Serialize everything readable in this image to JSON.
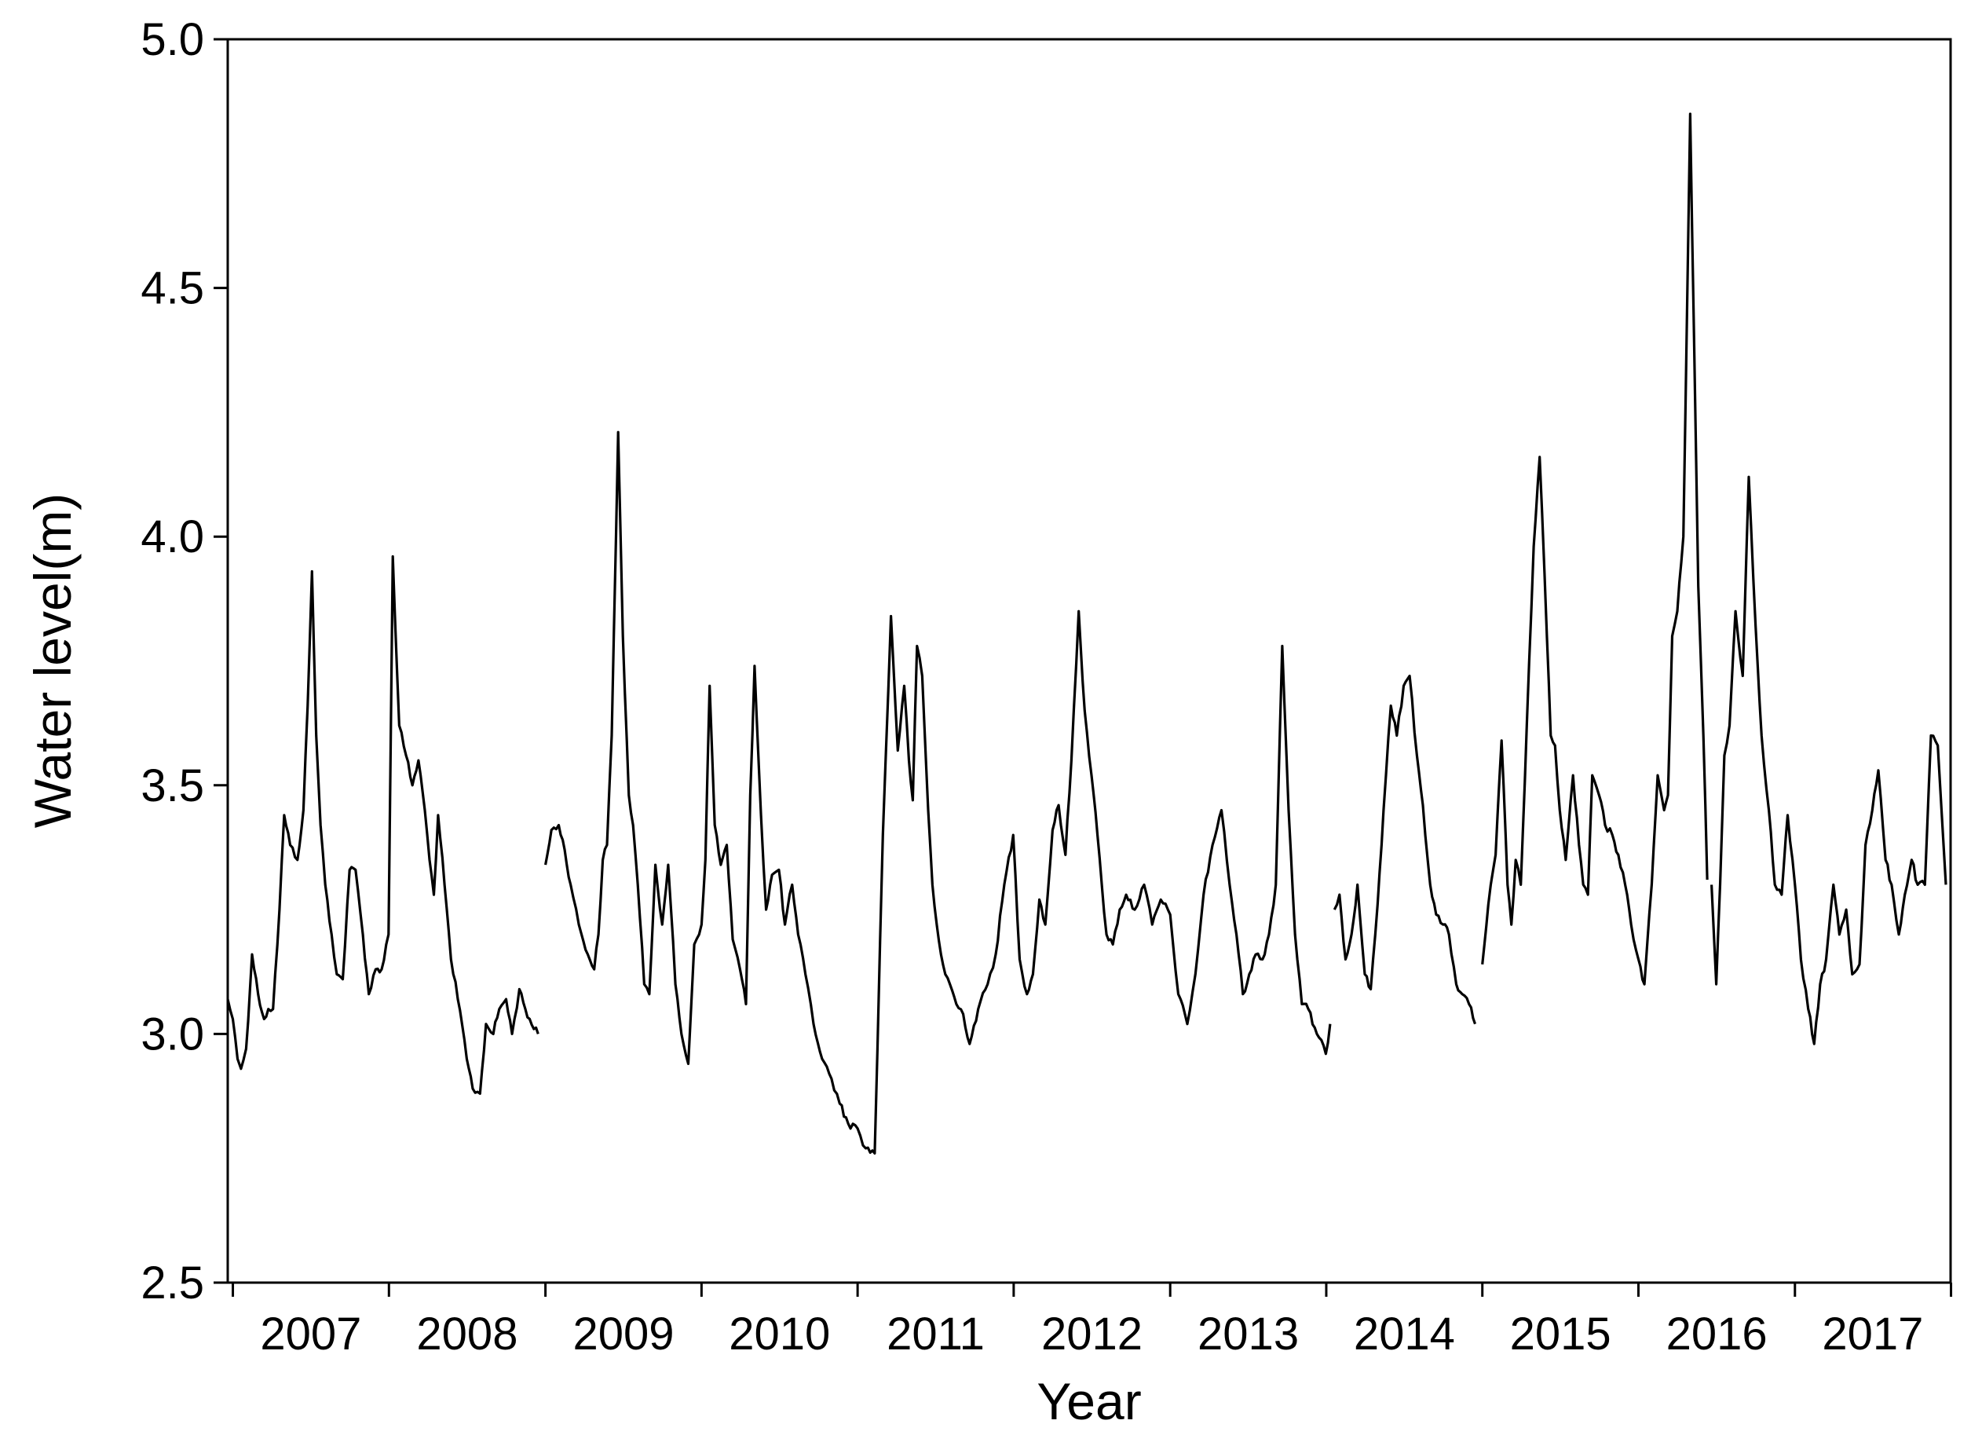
{
  "chart_data": {
    "type": "line",
    "title": "",
    "xlabel": "Year",
    "ylabel": "Water level(m)",
    "ylim": [
      2.5,
      5.0
    ],
    "xlim": [
      "2006-12-20",
      "2017-12-31"
    ],
    "grid": false,
    "legend": "none",
    "yticks": [
      "2.5",
      "3.0",
      "3.5",
      "4.0",
      "4.5",
      "5.0"
    ],
    "xticks": [
      "2007",
      "2008",
      "2009",
      "2010",
      "2011",
      "2012",
      "2013",
      "2014",
      "2015",
      "2016",
      "2017"
    ],
    "line_color": "#000000",
    "series": [
      {
        "segments": [
          {
            "x": [
              "2006-12-20",
              "2007-01-01",
              "2007-01-12",
              "2007-01-20",
              "2007-02-01",
              "2007-02-15",
              "2007-03-01",
              "2007-03-15",
              "2007-03-25",
              "2007-04-05",
              "2007-04-20",
              "2007-05-01",
              "2007-05-15",
              "2007-06-01",
              "2007-06-15",
              "2007-06-25",
              "2007-07-05",
              "2007-07-15",
              "2007-07-25",
              "2007-08-05",
              "2007-08-20",
              "2007-09-01",
              "2007-09-15",
              "2007-10-01",
              "2007-10-15",
              "2007-11-01",
              "2007-11-15",
              "2007-12-01",
              "2007-12-15",
              "2007-12-31",
              "2008-01-10",
              "2008-01-25",
              "2008-02-10",
              "2008-02-25",
              "2008-03-10",
              "2008-03-25",
              "2008-04-05",
              "2008-04-15",
              "2008-04-25",
              "2008-05-10",
              "2008-05-25",
              "2008-06-10",
              "2008-06-20",
              "2008-07-01",
              "2008-07-15",
              "2008-08-01",
              "2008-08-15",
              "2008-09-01",
              "2008-09-15",
              "2008-10-01",
              "2008-10-15",
              "2008-11-01",
              "2008-11-15",
              "2008-11-25",
              "2008-12-05",
              "2008-12-15"
            ],
            "y": [
              3.07,
              3.03,
              2.95,
              2.93,
              2.97,
              3.16,
              3.08,
              3.03,
              3.05,
              3.05,
              3.25,
              3.44,
              3.38,
              3.35,
              3.45,
              3.66,
              3.93,
              3.6,
              3.42,
              3.3,
              3.2,
              3.12,
              3.11,
              3.33,
              3.33,
              3.2,
              3.08,
              3.13,
              3.13,
              3.2,
              3.96,
              3.62,
              3.56,
              3.5,
              3.55,
              3.45,
              3.35,
              3.28,
              3.44,
              3.3,
              3.15,
              3.07,
              3.02,
              2.95,
              2.89,
              2.88,
              3.02,
              3.0,
              3.05,
              3.07,
              3.0,
              3.09,
              3.05,
              3.03,
              3.01,
              3.0
            ]
          },
          {
            "x": [
              "2009-01-01",
              "2009-01-15",
              "2009-02-01",
              "2009-02-15",
              "2009-03-01",
              "2009-03-20",
              "2009-04-10",
              "2009-04-25",
              "2009-05-05",
              "2009-05-15",
              "2009-05-25",
              "2009-06-05",
              "2009-06-20",
              "2009-07-01",
              "2009-07-15",
              "2009-07-25",
              "2009-08-05",
              "2009-08-20",
              "2009-09-01",
              "2009-09-15",
              "2009-10-01",
              "2009-10-15",
              "2009-11-01",
              "2009-11-15",
              "2009-12-01",
              "2009-12-15",
              "2010-01-01",
              "2010-01-10",
              "2010-01-20",
              "2010-02-01",
              "2010-02-15",
              "2010-03-01",
              "2010-03-15",
              "2010-04-01",
              "2010-04-15",
              "2010-04-25",
              "2010-05-05",
              "2010-05-20",
              "2010-06-01",
              "2010-06-15",
              "2010-07-01",
              "2010-07-15",
              "2010-08-01",
              "2010-08-15",
              "2010-09-01",
              "2010-09-20",
              "2010-10-10",
              "2010-11-01",
              "2010-11-20",
              "2010-12-10",
              "2011-01-01",
              "2011-01-20",
              "2011-02-10",
              "2011-03-01",
              "2011-03-20",
              "2011-04-05",
              "2011-04-20",
              "2011-05-01",
              "2011-05-10",
              "2011-05-20",
              "2011-06-01",
              "2011-06-15",
              "2011-06-25",
              "2011-07-05",
              "2011-07-15",
              "2011-07-25",
              "2011-08-05",
              "2011-08-20",
              "2011-09-05",
              "2011-09-20",
              "2011-10-10",
              "2011-11-01",
              "2011-11-20",
              "2011-12-10",
              "2011-12-31",
              "2012-01-15",
              "2012-02-01",
              "2012-02-15",
              "2012-03-01",
              "2012-03-15",
              "2012-04-01",
              "2012-04-15",
              "2012-05-01",
              "2012-05-15",
              "2012-06-01",
              "2012-06-15",
              "2012-07-01",
              "2012-07-15",
              "2012-07-25",
              "2012-08-05",
              "2012-08-20",
              "2012-09-05",
              "2012-09-20",
              "2012-10-10",
              "2012-11-01",
              "2012-11-20",
              "2012-12-10",
              "2013-01-01",
              "2013-01-20",
              "2013-02-10",
              "2013-03-01",
              "2013-03-20",
              "2013-04-10",
              "2013-05-01",
              "2013-05-20",
              "2013-06-05",
              "2013-06-20",
              "2013-07-05",
              "2013-07-20",
              "2013-08-05",
              "2013-08-20",
              "2013-09-05",
              "2013-09-20",
              "2013-10-05",
              "2013-10-20",
              "2013-11-05",
              "2013-11-20",
              "2013-12-10",
              "2013-12-31",
              "2014-01-10"
            ],
            "y": [
              3.34,
              3.41,
              3.42,
              3.37,
              3.3,
              3.22,
              3.16,
              3.13,
              3.2,
              3.35,
              3.38,
              3.6,
              4.21,
              3.8,
              3.48,
              3.42,
              3.3,
              3.1,
              3.08,
              3.34,
              3.22,
              3.34,
              3.1,
              3.0,
              2.94,
              3.18,
              3.22,
              3.35,
              3.7,
              3.42,
              3.34,
              3.38,
              3.19,
              3.13,
              3.06,
              3.48,
              3.74,
              3.44,
              3.25,
              3.32,
              3.33,
              3.22,
              3.3,
              3.2,
              3.12,
              3.02,
              2.95,
              2.91,
              2.86,
              2.82,
              2.81,
              2.77,
              2.76,
              3.4,
              3.84,
              3.57,
              3.7,
              3.55,
              3.47,
              3.78,
              3.72,
              3.45,
              3.3,
              3.22,
              3.16,
              3.12,
              3.1,
              3.06,
              3.04,
              2.98,
              3.05,
              3.1,
              3.16,
              3.3,
              3.4,
              3.15,
              3.08,
              3.12,
              3.27,
              3.22,
              3.41,
              3.46,
              3.36,
              3.55,
              3.85,
              3.65,
              3.52,
              3.4,
              3.3,
              3.2,
              3.18,
              3.25,
              3.28,
              3.25,
              3.3,
              3.22,
              3.27,
              3.24,
              3.08,
              3.02,
              3.12,
              3.28,
              3.38,
              3.45,
              3.3,
              3.2,
              3.08,
              3.12,
              3.16,
              3.15,
              3.2,
              3.3,
              3.78,
              3.45,
              3.2,
              3.06,
              3.05,
              3.0,
              2.96,
              3.02
            ]
          },
          {
            "x": [
              "2014-01-20",
              "2014-02-01",
              "2014-02-15",
              "2014-03-01",
              "2014-03-15",
              "2014-04-01",
              "2014-04-15",
              "2014-05-01",
              "2014-05-15",
              "2014-06-01",
              "2014-06-15",
              "2014-07-01",
              "2014-07-15",
              "2014-08-01",
              "2014-08-15",
              "2014-09-01",
              "2014-09-15",
              "2014-10-01",
              "2014-10-15",
              "2014-11-01",
              "2014-11-15",
              "2014-12-01",
              "2014-12-15"
            ],
            "y": [
              3.25,
              3.28,
              3.15,
              3.2,
              3.3,
              3.12,
              3.09,
              3.26,
              3.45,
              3.66,
              3.6,
              3.7,
              3.72,
              3.56,
              3.46,
              3.3,
              3.24,
              3.22,
              3.2,
              3.1,
              3.08,
              3.06,
              3.02
            ]
          },
          {
            "x": [
              "2015-01-01",
              "2015-01-15",
              "2015-02-01",
              "2015-02-15",
              "2015-03-01",
              "2015-03-10",
              "2015-03-20",
              "2015-04-01",
              "2015-04-15",
              "2015-05-01",
              "2015-05-15",
              "2015-06-01",
              "2015-06-10",
              "2015-06-20",
              "2015-07-01",
              "2015-07-15",
              "2015-08-01",
              "2015-08-15",
              "2015-08-25",
              "2015-09-05",
              "2015-09-15",
              "2015-10-01",
              "2015-10-15",
              "2015-11-01",
              "2015-11-15",
              "2015-12-01",
              "2015-12-15",
              "2016-01-01",
              "2016-01-15",
              "2016-02-01",
              "2016-02-15",
              "2016-03-01",
              "2016-03-10",
              "2016-03-20",
              "2016-04-01",
              "2016-04-15",
              "2016-05-01",
              "2016-05-10",
              "2016-05-20",
              "2016-06-01",
              "2016-06-10"
            ],
            "y": [
              3.14,
              3.26,
              3.36,
              3.59,
              3.3,
              3.22,
              3.35,
              3.3,
              3.62,
              3.98,
              4.16,
              3.8,
              3.6,
              3.58,
              3.45,
              3.35,
              3.52,
              3.38,
              3.3,
              3.28,
              3.52,
              3.48,
              3.42,
              3.4,
              3.36,
              3.3,
              3.22,
              3.15,
              3.1,
              3.3,
              3.52,
              3.45,
              3.48,
              3.8,
              3.85,
              4.0,
              4.85,
              4.4,
              3.9,
              3.6,
              3.31
            ]
          },
          {
            "x": [
              "2016-06-20",
              "2016-07-01",
              "2016-07-10",
              "2016-07-20",
              "2016-08-01",
              "2016-08-15",
              "2016-09-01",
              "2016-09-15",
              "2016-10-01",
              "2016-10-15",
              "2016-11-01",
              "2016-11-15",
              "2016-12-01",
              "2016-12-15",
              "2017-01-01",
              "2017-01-15",
              "2017-02-01",
              "2017-02-15",
              "2017-03-01",
              "2017-03-15",
              "2017-04-01",
              "2017-04-15",
              "2017-05-01",
              "2017-05-15",
              "2017-06-01",
              "2017-06-15",
              "2017-07-01",
              "2017-07-15",
              "2017-08-01",
              "2017-08-15",
              "2017-09-01",
              "2017-09-15",
              "2017-10-01",
              "2017-10-15",
              "2017-11-01",
              "2017-11-15",
              "2017-12-01",
              "2017-12-20"
            ],
            "y": [
              3.3,
              3.1,
              3.3,
              3.56,
              3.62,
              3.85,
              3.72,
              4.12,
              3.82,
              3.6,
              3.45,
              3.3,
              3.28,
              3.44,
              3.3,
              3.15,
              3.05,
              2.98,
              3.1,
              3.15,
              3.3,
              3.2,
              3.25,
              3.12,
              3.14,
              3.38,
              3.45,
              3.53,
              3.35,
              3.3,
              3.2,
              3.28,
              3.35,
              3.3,
              3.3,
              3.6,
              3.58,
              3.3
            ]
          }
        ]
      }
    ]
  }
}
